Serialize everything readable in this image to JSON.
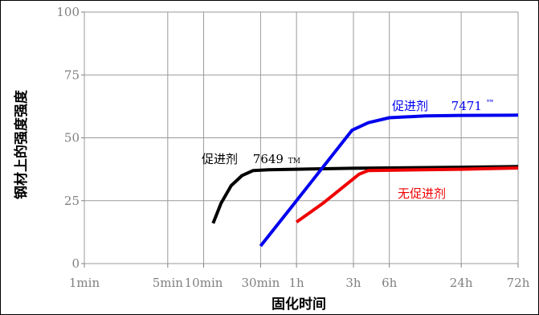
{
  "chart_data": {
    "type": "line",
    "title": "",
    "xlabel": "固化时间",
    "ylabel": "钢材上的强度强度",
    "x_scale": "log",
    "x_ticks": [
      {
        "label": "1min",
        "minutes": 1
      },
      {
        "label": "5min",
        "minutes": 5
      },
      {
        "label": "10min",
        "minutes": 10
      },
      {
        "label": "30min",
        "minutes": 30
      },
      {
        "label": "1h",
        "minutes": 60
      },
      {
        "label": "3h",
        "minutes": 180
      },
      {
        "label": "6h",
        "minutes": 360
      },
      {
        "label": "24h",
        "minutes": 1440
      },
      {
        "label": "72h",
        "minutes": 4320
      }
    ],
    "y_ticks": [
      0,
      25,
      50,
      75,
      100
    ],
    "ylim": [
      0,
      100
    ],
    "grid": true,
    "series": [
      {
        "name": "促进剂 7649",
        "label_text": "促进剂",
        "label_code": "7649",
        "label_mark": "TM",
        "color": "#000000",
        "points": [
          [
            12,
            16
          ],
          [
            14,
            24
          ],
          [
            17,
            31
          ],
          [
            21,
            35
          ],
          [
            26,
            37
          ],
          [
            35,
            37.3
          ],
          [
            60,
            37.5
          ],
          [
            180,
            37.9
          ],
          [
            1440,
            38.3
          ],
          [
            4320,
            38.6
          ]
        ]
      },
      {
        "name": "促进剂 7471",
        "label_text": "促进剂",
        "label_code": "7471",
        "label_mark": "™",
        "color": "#0000ee",
        "points": [
          [
            30,
            7
          ],
          [
            60,
            25
          ],
          [
            175,
            53
          ],
          [
            240,
            56
          ],
          [
            360,
            58
          ],
          [
            720,
            58.7
          ],
          [
            1440,
            58.9
          ],
          [
            4320,
            59
          ]
        ]
      },
      {
        "name": "无促进剂",
        "label_text": "无促进剂",
        "color": "#ee0000",
        "points": [
          [
            60,
            16.5
          ],
          [
            100,
            24
          ],
          [
            200,
            35.5
          ],
          [
            240,
            37
          ],
          [
            1440,
            37.5
          ],
          [
            4320,
            38
          ]
        ]
      }
    ]
  }
}
